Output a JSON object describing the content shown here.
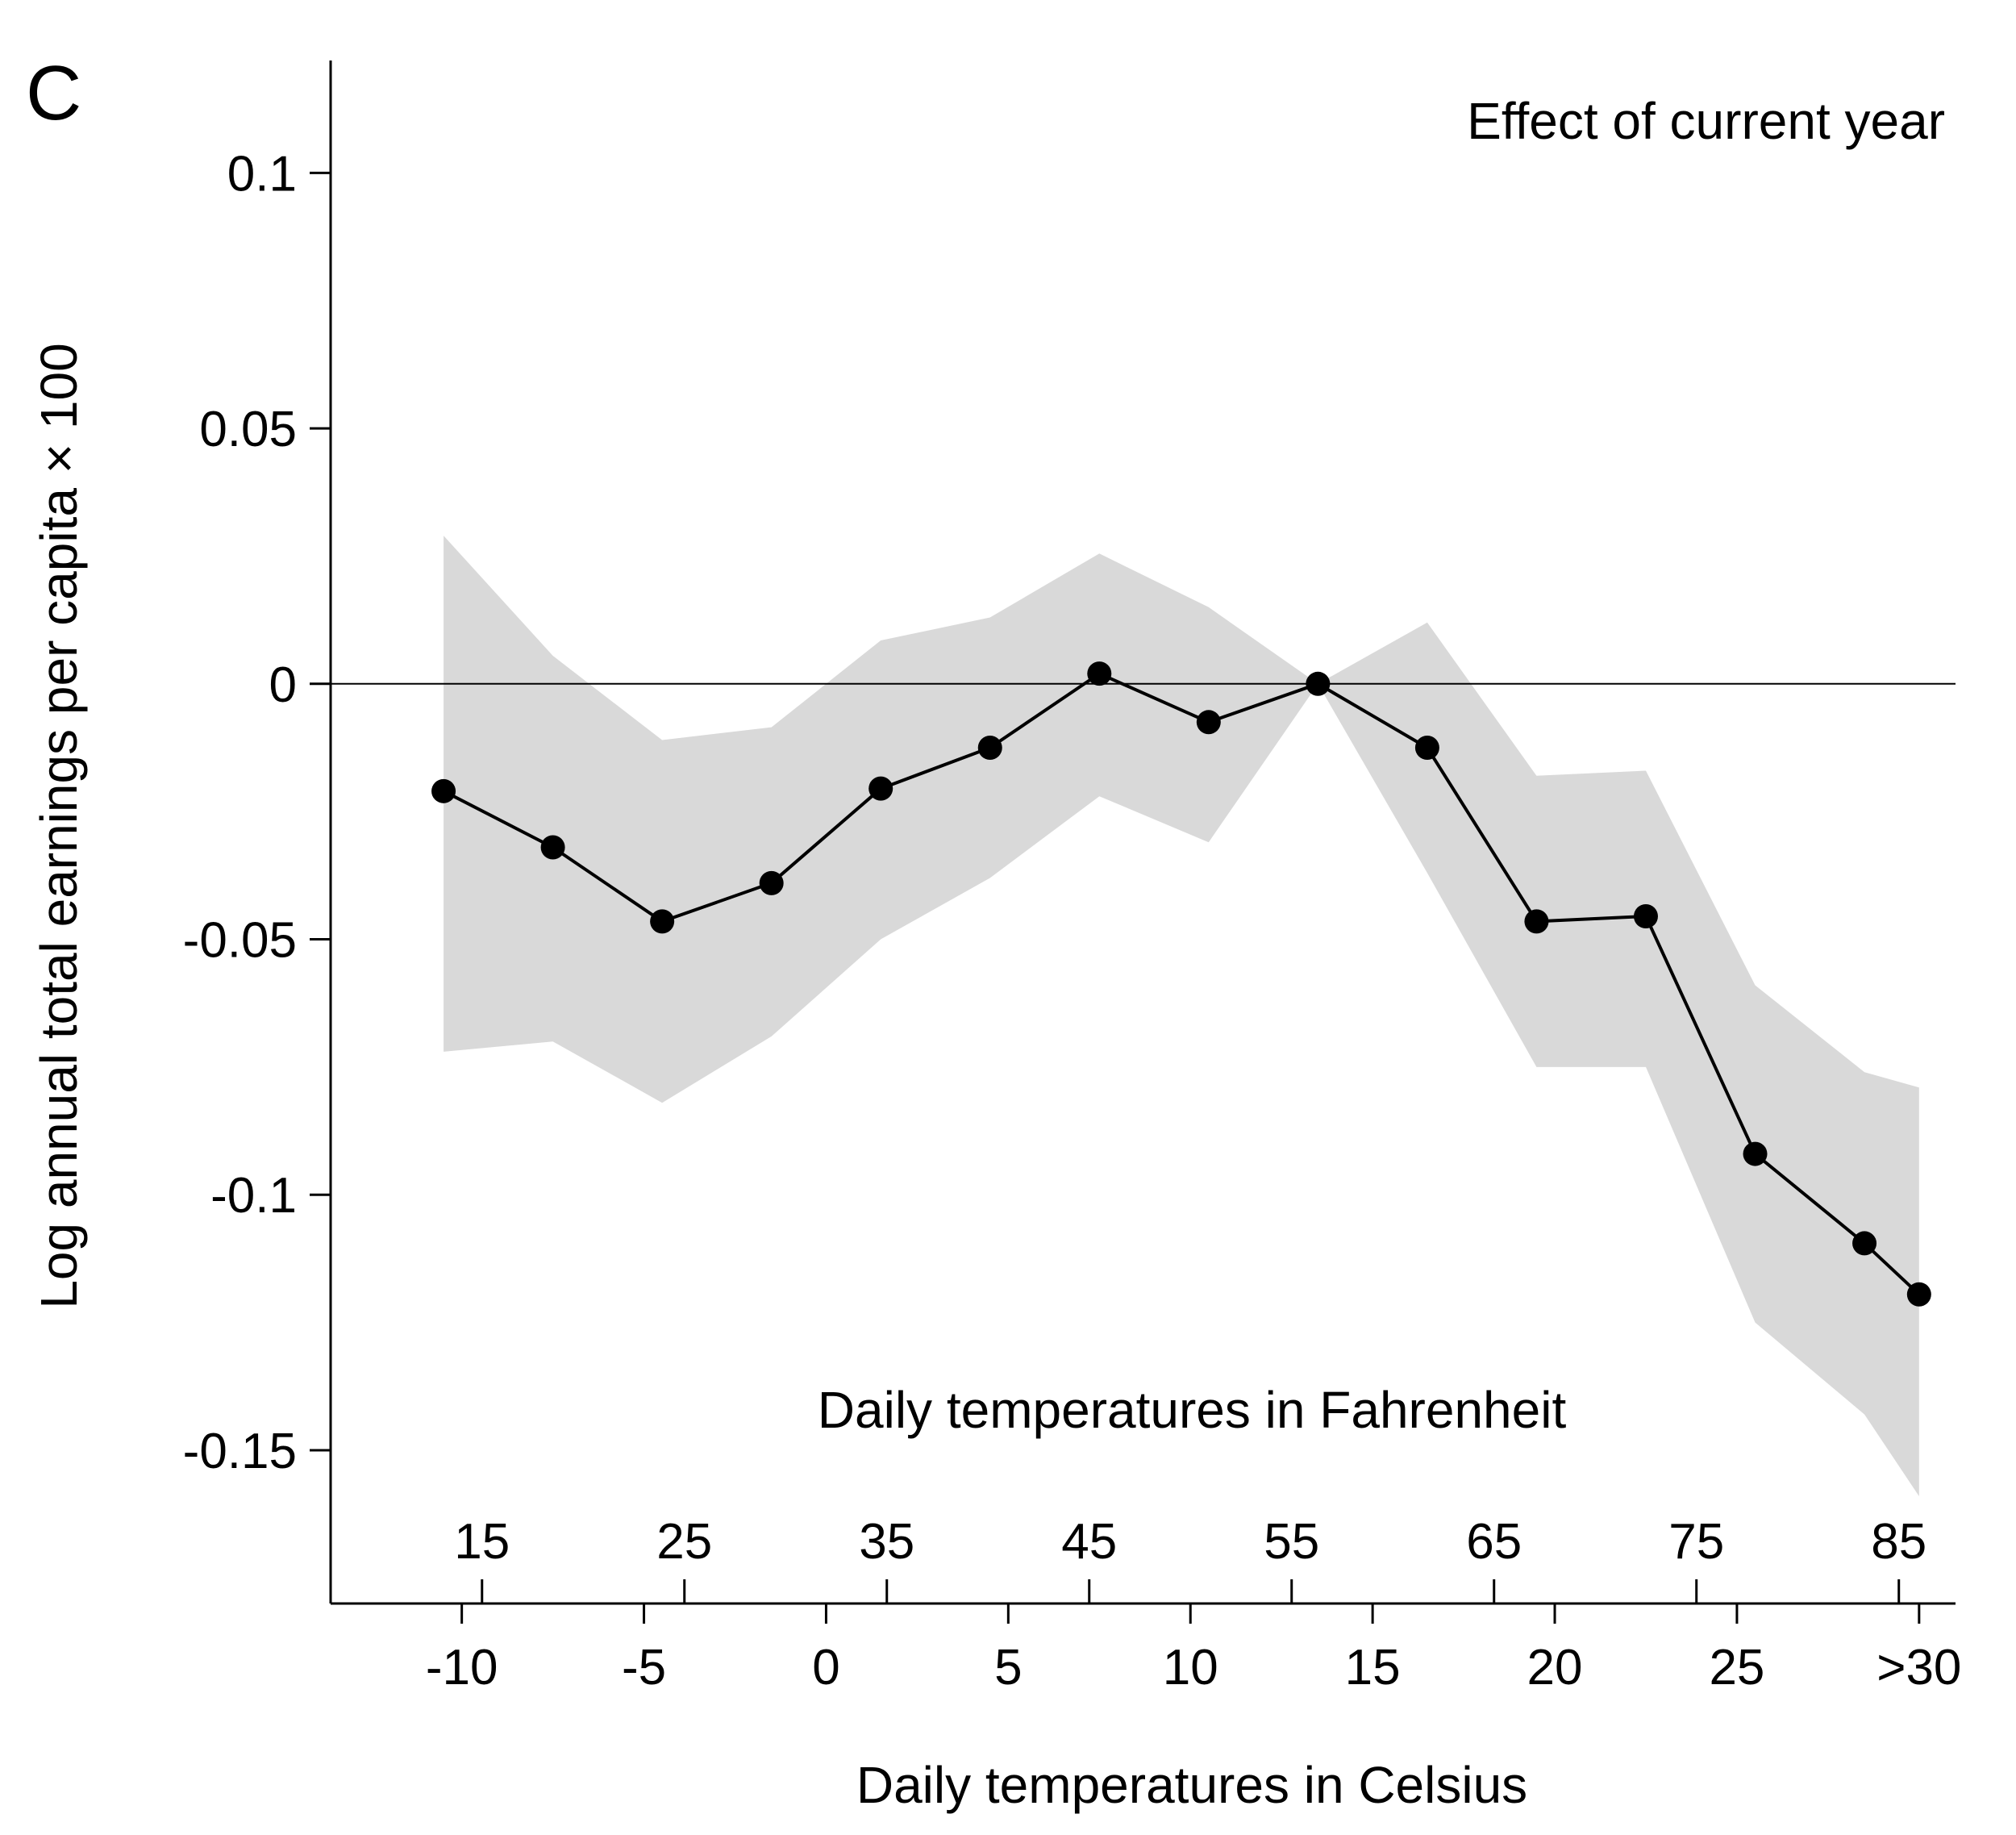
{
  "chart_data": {
    "type": "line",
    "panel_label": "C",
    "annotation": "Effect of current year",
    "ylabel": "Log annual total earnings per capita × 100",
    "xlabel": "Daily temperatures in Celsius",
    "x2label": "Daily temperatures in Fahrenheit",
    "ylim": [
      -0.18,
      0.122
    ],
    "xlim": [
      -13.6,
      31
    ],
    "yticks": [
      0.1,
      0.05,
      0,
      -0.05,
      -0.1,
      -0.15
    ],
    "ytick_labels": [
      "0.1",
      "0.05",
      "0",
      "-0.05",
      "-0.1",
      "-0.15"
    ],
    "xticks": [
      -10,
      -5,
      0,
      5,
      10,
      15,
      20,
      25,
      30
    ],
    "xtick_labels": [
      "-10",
      "-5",
      "0",
      "5",
      "10",
      "15",
      "20",
      "25",
      ">30"
    ],
    "x2ticks_f": [
      15,
      25,
      35,
      45,
      55,
      65,
      75,
      85
    ],
    "x2tick_labels": [
      "15",
      "25",
      "35",
      "45",
      "55",
      "65",
      "75",
      "85"
    ],
    "reference_line_y": 0,
    "series": [
      {
        "name": "Effect of current year",
        "x": [
          -10.5,
          -7.5,
          -4.5,
          -1.5,
          1.5,
          4.5,
          7.5,
          10.5,
          13.5,
          16.5,
          19.5,
          22.5,
          25.5,
          28.5,
          30
        ],
        "y": [
          -0.021,
          -0.032,
          -0.0465,
          -0.039,
          -0.0205,
          -0.0125,
          0.002,
          -0.0075,
          0,
          -0.0125,
          -0.0465,
          -0.0455,
          -0.092,
          -0.1095,
          -0.1195
        ],
        "ci_low": [
          -0.072,
          -0.07,
          -0.082,
          -0.069,
          -0.05,
          -0.038,
          -0.022,
          -0.031,
          0,
          -0.037,
          -0.075,
          -0.075,
          -0.125,
          -0.143,
          -0.159
        ],
        "ci_high": [
          0.029,
          0.0055,
          -0.011,
          -0.0085,
          0.0085,
          0.013,
          0.0255,
          0.015,
          0,
          0.012,
          -0.018,
          -0.017,
          -0.059,
          -0.076,
          -0.079
        ]
      }
    ]
  }
}
